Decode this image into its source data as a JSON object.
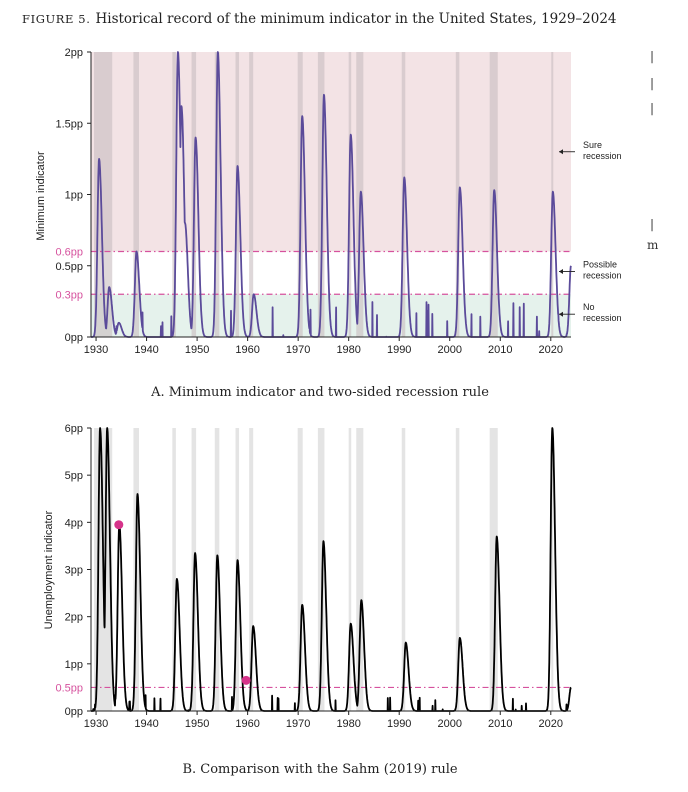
{
  "figure": {
    "label": "FIGURE 5.",
    "title": "Historical record of the minimum indicator in the United States, 1929–2024",
    "margin_text": [
      "|",
      "|",
      "|",
      "|",
      "m"
    ]
  },
  "chart_data": [
    {
      "type": "line",
      "caption": "A. Minimum indicator and two-sided recession rule",
      "ylabel": "Minimum indicator",
      "xlim": [
        1929,
        2024
      ],
      "ylim": [
        0,
        2
      ],
      "x_ticks": [
        1930,
        1940,
        1950,
        1960,
        1970,
        1980,
        1990,
        2000,
        2010,
        2020
      ],
      "x_tick_labels": [
        "1930",
        "1940",
        "1950",
        "1960",
        "1970",
        "1980",
        "1990",
        "2000",
        "2010",
        "2020"
      ],
      "y_ticks": [
        0,
        0.5,
        1,
        1.5,
        2
      ],
      "y_tick_labels": [
        "0pp",
        "0.5pp",
        "1pp",
        "1.5pp",
        "2pp"
      ],
      "thresholds": [
        {
          "value": 0.6,
          "label": "0.6pp",
          "color": "#d6529e"
        },
        {
          "value": 0.3,
          "label": "0.3pp",
          "color": "#d6529e"
        }
      ],
      "zones": [
        {
          "from": 0.6,
          "to": 2,
          "color": "#f3e3e5",
          "label": "Sure recession"
        },
        {
          "from": 0.3,
          "to": 0.6,
          "color": "#ffffff",
          "label": "Possible recession"
        },
        {
          "from": 0,
          "to": 0.3,
          "color": "#e5f2ec",
          "label": "No recession"
        }
      ],
      "annotations": [
        {
          "lines": [
            "Sure",
            "recession"
          ],
          "y": 1.3
        },
        {
          "lines": [
            "Possible",
            "recession"
          ],
          "y": 0.46
        },
        {
          "lines": [
            "No",
            "recession"
          ],
          "y": 0.16
        }
      ],
      "recessions": [
        [
          1929.6,
          1933.2
        ],
        [
          1937.4,
          1938.5
        ],
        [
          1945.1,
          1945.8
        ],
        [
          1948.9,
          1949.8
        ],
        [
          1953.5,
          1954.4
        ],
        [
          1957.6,
          1958.3
        ],
        [
          1960.3,
          1961.1
        ],
        [
          1969.9,
          1970.9
        ],
        [
          1973.9,
          1975.2
        ],
        [
          1980.0,
          1980.5
        ],
        [
          1981.5,
          1982.9
        ],
        [
          1990.5,
          1991.2
        ],
        [
          2001.2,
          2001.9
        ],
        [
          2007.9,
          2009.5
        ],
        [
          2020.1,
          2020.3
        ]
      ],
      "series": [
        {
          "name": "Minimum indicator",
          "color": "#5b4b9a",
          "peaks": [
            [
              1930.6,
              1.25
            ],
            [
              1932.6,
              0.35
            ],
            [
              1934.5,
              0.1
            ],
            [
              1938.0,
              0.6
            ],
            [
              1946.2,
              2.0
            ],
            [
              1946.9,
              1.62
            ],
            [
              1947.6,
              0.8
            ],
            [
              1949.7,
              1.4
            ],
            [
              1954.1,
              2.0
            ],
            [
              1958.0,
              1.2
            ],
            [
              1961.2,
              0.3
            ],
            [
              1970.8,
              1.55
            ],
            [
              1975.1,
              1.7
            ],
            [
              1980.4,
              1.42
            ],
            [
              1982.4,
              1.02
            ],
            [
              1991.0,
              1.12
            ],
            [
              2002.0,
              1.05
            ],
            [
              2008.8,
              1.03
            ],
            [
              2020.4,
              1.02
            ],
            [
              2024.0,
              0.5
            ]
          ]
        }
      ]
    },
    {
      "type": "line",
      "caption": "B. Comparison with the Sahm (2019) rule",
      "ylabel": "Unemployment indicator",
      "xlim": [
        1929,
        2024
      ],
      "ylim": [
        0,
        6
      ],
      "x_ticks": [
        1930,
        1940,
        1950,
        1960,
        1970,
        1980,
        1990,
        2000,
        2010,
        2020
      ],
      "x_tick_labels": [
        "1930",
        "1940",
        "1950",
        "1960",
        "1970",
        "1980",
        "1990",
        "2000",
        "2010",
        "2020"
      ],
      "y_ticks": [
        0,
        1,
        2,
        3,
        4,
        5,
        6
      ],
      "y_tick_labels": [
        "0pp",
        "1pp",
        "2pp",
        "3pp",
        "4pp",
        "5pp",
        "6pp"
      ],
      "thresholds": [
        {
          "value": 0.5,
          "label": "0.5pp",
          "color": "#d6529e"
        }
      ],
      "recessions": [
        [
          1929.6,
          1933.2
        ],
        [
          1937.4,
          1938.5
        ],
        [
          1945.1,
          1945.8
        ],
        [
          1948.9,
          1949.8
        ],
        [
          1953.5,
          1954.4
        ],
        [
          1957.6,
          1958.3
        ],
        [
          1960.3,
          1961.1
        ],
        [
          1969.9,
          1970.9
        ],
        [
          1973.9,
          1975.2
        ],
        [
          1980.0,
          1980.5
        ],
        [
          1981.5,
          1982.9
        ],
        [
          1990.5,
          1991.2
        ],
        [
          2001.2,
          2001.9
        ],
        [
          2007.9,
          2009.5
        ],
        [
          2020.1,
          2020.3
        ]
      ],
      "markers": [
        {
          "x": 1934.5,
          "y": 3.95,
          "color": "#d6338a"
        },
        {
          "x": 1959.7,
          "y": 0.65,
          "color": "#d6338a"
        }
      ],
      "series": [
        {
          "name": "Unemployment indicator",
          "color": "#000000",
          "peaks": [
            [
              1930.8,
              6.0
            ],
            [
              1931.6,
              1.4
            ],
            [
              1932.2,
              6.0
            ],
            [
              1934.6,
              3.95
            ],
            [
              1938.2,
              4.6
            ],
            [
              1946.0,
              2.8
            ],
            [
              1949.6,
              3.35
            ],
            [
              1954.0,
              3.3
            ],
            [
              1958.0,
              3.2
            ],
            [
              1961.1,
              1.8
            ],
            [
              1970.8,
              2.25
            ],
            [
              1975.0,
              3.6
            ],
            [
              1980.4,
              1.85
            ],
            [
              1982.5,
              2.35
            ],
            [
              1991.3,
              1.45
            ],
            [
              2002.0,
              1.55
            ],
            [
              2009.3,
              3.7
            ],
            [
              2020.3,
              6.0
            ],
            [
              2024.0,
              0.5
            ]
          ]
        }
      ]
    }
  ]
}
